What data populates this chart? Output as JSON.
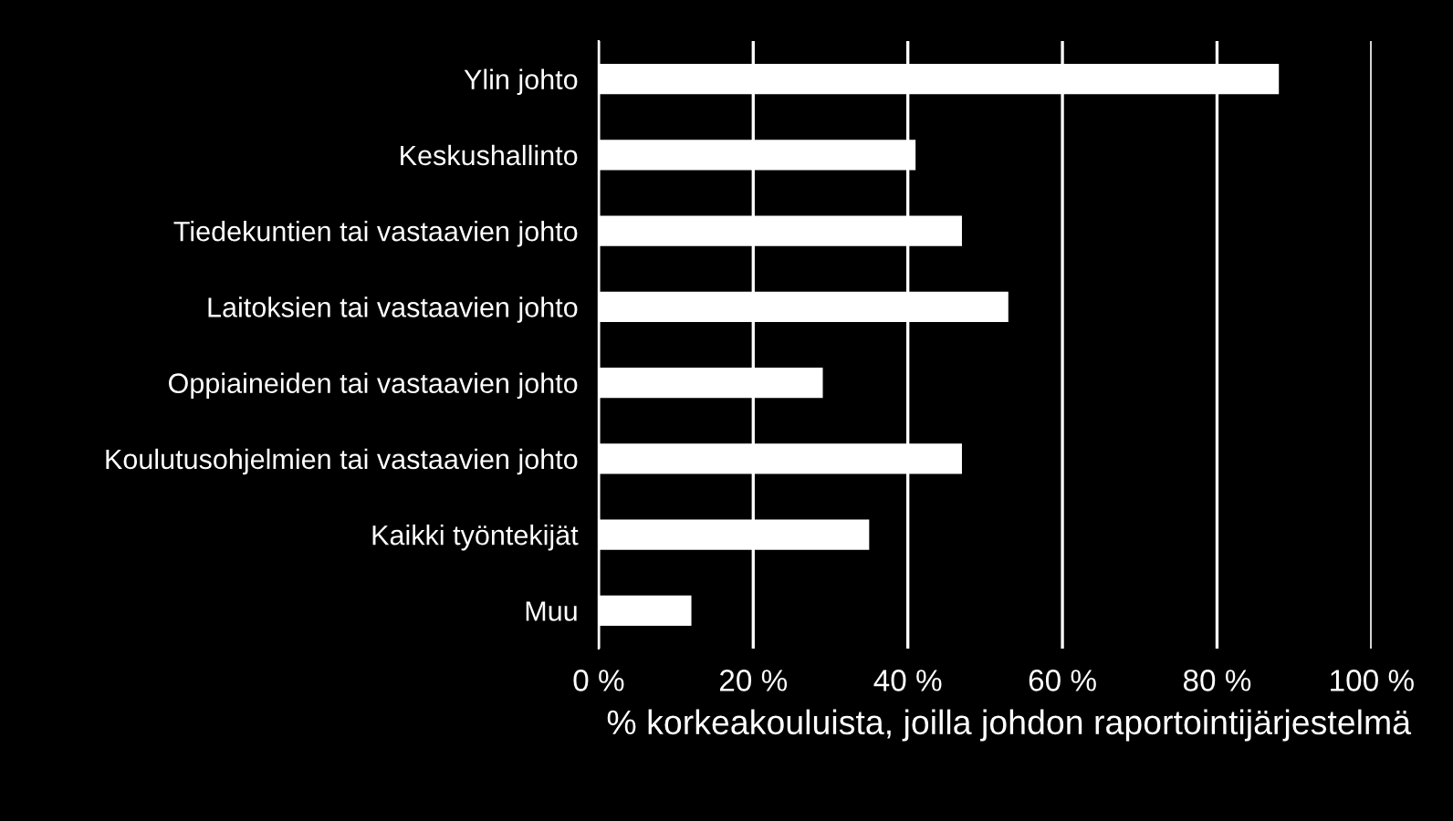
{
  "chart_data": {
    "type": "bar",
    "orientation": "horizontal",
    "categories": [
      "Ylin johto",
      "Keskushallinto",
      "Tiedekuntien tai vastaavien johto",
      "Laitoksien tai vastaavien johto",
      "Oppiaineiden tai vastaavien johto",
      "Koulutusohjelmien tai vastaavien johto",
      "Kaikki työntekijät",
      "Muu"
    ],
    "values": [
      88,
      41,
      47,
      53,
      29,
      47,
      35,
      12
    ],
    "color": "#ffffff",
    "xlabel": "% korkeakouluista, joilla johdon raportointijärjestelmä",
    "xlim": [
      0,
      100
    ],
    "xticks": [
      {
        "value": 0,
        "label": "0 %"
      },
      {
        "value": 20,
        "label": "20 %"
      },
      {
        "value": 40,
        "label": "40 %"
      },
      {
        "value": 60,
        "label": "60 %"
      },
      {
        "value": 80,
        "label": "80 %"
      },
      {
        "value": 100,
        "label": "100 %"
      }
    ],
    "grid": "x"
  }
}
